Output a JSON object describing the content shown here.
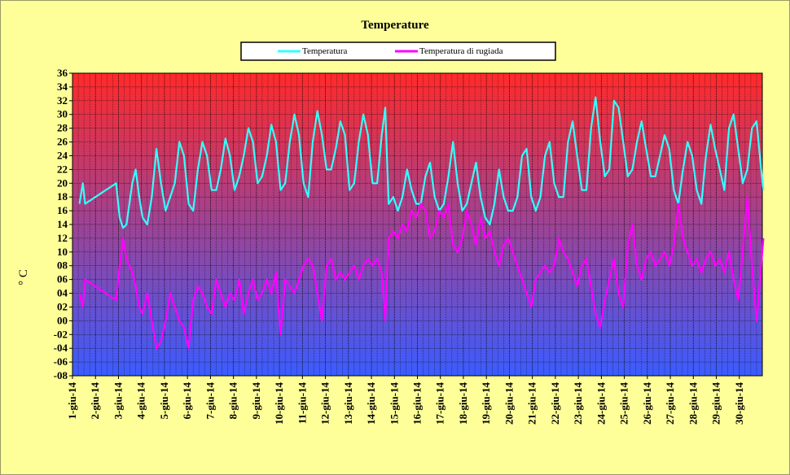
{
  "chart_data": {
    "type": "line",
    "title": "Temperature",
    "ylabel": "° C",
    "xlabel": "",
    "ylim": [
      -8,
      36
    ],
    "yticks": [
      "-08",
      "-06",
      "-04",
      "-02",
      "00",
      "02",
      "04",
      "06",
      "08",
      "10",
      "12",
      "14",
      "16",
      "18",
      "20",
      "22",
      "24",
      "26",
      "28",
      "30",
      "32",
      "34",
      "36"
    ],
    "categories": [
      "1-giu-14",
      "2-giu-14",
      "3-giu-14",
      "4-giu-14",
      "5-giu-14",
      "6-giu-14",
      "7-giu-14",
      "8-giu-14",
      "9-giu-14",
      "10-giu-14",
      "11-giu-14",
      "12-giu-14",
      "13-giu-14",
      "14-giu-14",
      "15-giu-14",
      "16-giu-14",
      "17-giu-14",
      "18-giu-14",
      "19-giu-14",
      "20-giu-14",
      "21-giu-14",
      "22-giu-14",
      "23-giu-14",
      "24-giu-14",
      "25-giu-14",
      "26-giu-14",
      "27-giu-14",
      "28-giu-14",
      "29-giu-14",
      "30-giu-14"
    ],
    "legend_position": "top-center",
    "grid": true,
    "background_gradient": {
      "top": "#ff2a2a",
      "bottom": "#3b5cff"
    },
    "series": [
      {
        "name": "Temperatura",
        "color": "#33ffff",
        "points": [
          [
            1.3,
            17
          ],
          [
            1.45,
            20
          ],
          [
            1.55,
            17
          ],
          [
            2.9,
            20
          ],
          [
            3.05,
            15
          ],
          [
            3.2,
            13.5
          ],
          [
            3.35,
            14
          ],
          [
            3.6,
            20
          ],
          [
            3.75,
            22
          ],
          [
            3.9,
            18
          ],
          [
            4.05,
            15
          ],
          [
            4.25,
            14
          ],
          [
            4.45,
            18
          ],
          [
            4.65,
            25
          ],
          [
            4.85,
            20
          ],
          [
            5.05,
            16
          ],
          [
            5.25,
            18
          ],
          [
            5.45,
            20
          ],
          [
            5.65,
            26
          ],
          [
            5.85,
            24
          ],
          [
            6.05,
            17
          ],
          [
            6.25,
            16
          ],
          [
            6.45,
            22
          ],
          [
            6.65,
            26
          ],
          [
            6.85,
            24
          ],
          [
            7.05,
            19
          ],
          [
            7.25,
            19
          ],
          [
            7.45,
            22
          ],
          [
            7.65,
            26.5
          ],
          [
            7.85,
            24
          ],
          [
            8.05,
            19
          ],
          [
            8.25,
            21
          ],
          [
            8.45,
            24
          ],
          [
            8.65,
            28
          ],
          [
            8.85,
            26
          ],
          [
            9.05,
            20
          ],
          [
            9.25,
            21
          ],
          [
            9.45,
            24
          ],
          [
            9.65,
            28.5
          ],
          [
            9.85,
            26
          ],
          [
            10.05,
            19
          ],
          [
            10.25,
            20
          ],
          [
            10.45,
            26
          ],
          [
            10.65,
            30
          ],
          [
            10.85,
            27
          ],
          [
            11.05,
            20
          ],
          [
            11.25,
            18
          ],
          [
            11.45,
            26
          ],
          [
            11.65,
            30.5
          ],
          [
            11.85,
            27
          ],
          [
            12.05,
            22
          ],
          [
            12.25,
            22
          ],
          [
            12.45,
            25
          ],
          [
            12.65,
            29
          ],
          [
            12.85,
            27
          ],
          [
            13.05,
            19
          ],
          [
            13.25,
            20
          ],
          [
            13.45,
            26
          ],
          [
            13.65,
            30
          ],
          [
            13.85,
            27
          ],
          [
            14.05,
            20
          ],
          [
            14.25,
            20
          ],
          [
            14.45,
            27
          ],
          [
            14.6,
            31
          ],
          [
            14.75,
            17
          ],
          [
            14.95,
            18
          ],
          [
            15.15,
            16
          ],
          [
            15.35,
            18
          ],
          [
            15.55,
            22
          ],
          [
            15.75,
            19
          ],
          [
            15.95,
            17
          ],
          [
            16.15,
            17
          ],
          [
            16.35,
            21
          ],
          [
            16.55,
            23
          ],
          [
            16.75,
            18
          ],
          [
            16.95,
            16
          ],
          [
            17.15,
            17
          ],
          [
            17.35,
            21
          ],
          [
            17.55,
            26
          ],
          [
            17.75,
            20
          ],
          [
            17.95,
            16
          ],
          [
            18.15,
            17
          ],
          [
            18.35,
            20
          ],
          [
            18.55,
            23
          ],
          [
            18.75,
            18
          ],
          [
            18.95,
            15
          ],
          [
            19.15,
            14
          ],
          [
            19.35,
            17
          ],
          [
            19.55,
            22
          ],
          [
            19.75,
            18
          ],
          [
            19.95,
            16
          ],
          [
            20.15,
            16
          ],
          [
            20.35,
            18
          ],
          [
            20.55,
            24
          ],
          [
            20.75,
            25
          ],
          [
            20.95,
            18
          ],
          [
            21.15,
            16
          ],
          [
            21.35,
            18
          ],
          [
            21.55,
            24
          ],
          [
            21.75,
            26
          ],
          [
            21.95,
            20
          ],
          [
            22.15,
            18
          ],
          [
            22.35,
            18
          ],
          [
            22.55,
            26
          ],
          [
            22.75,
            29
          ],
          [
            22.95,
            24
          ],
          [
            23.15,
            19
          ],
          [
            23.35,
            19
          ],
          [
            23.55,
            28
          ],
          [
            23.75,
            32.5
          ],
          [
            23.95,
            26
          ],
          [
            24.15,
            21
          ],
          [
            24.35,
            22
          ],
          [
            24.55,
            32
          ],
          [
            24.75,
            31
          ],
          [
            24.95,
            26
          ],
          [
            25.15,
            21
          ],
          [
            25.35,
            22
          ],
          [
            25.55,
            26
          ],
          [
            25.75,
            29
          ],
          [
            25.95,
            25
          ],
          [
            26.15,
            21
          ],
          [
            26.35,
            21
          ],
          [
            26.55,
            24
          ],
          [
            26.75,
            27
          ],
          [
            26.95,
            25
          ],
          [
            27.15,
            19
          ],
          [
            27.35,
            17
          ],
          [
            27.55,
            22
          ],
          [
            27.75,
            26
          ],
          [
            27.95,
            24
          ],
          [
            28.15,
            19
          ],
          [
            28.35,
            17
          ],
          [
            28.55,
            24
          ],
          [
            28.75,
            28.5
          ],
          [
            28.95,
            25
          ],
          [
            29.15,
            22
          ],
          [
            29.35,
            19
          ],
          [
            29.55,
            28
          ],
          [
            29.75,
            30
          ],
          [
            29.95,
            25
          ],
          [
            30.15,
            20
          ],
          [
            30.35,
            22
          ],
          [
            30.55,
            28
          ],
          [
            30.75,
            29
          ],
          [
            30.95,
            22
          ],
          [
            31.05,
            19
          ]
        ]
      },
      {
        "name": "Temperatura di rugiada",
        "color": "#ff00ff",
        "points": [
          [
            1.3,
            4
          ],
          [
            1.45,
            2
          ],
          [
            1.55,
            6
          ],
          [
            2.9,
            3
          ],
          [
            3.05,
            8
          ],
          [
            3.2,
            12
          ],
          [
            3.35,
            9
          ],
          [
            3.6,
            7
          ],
          [
            3.75,
            5
          ],
          [
            3.9,
            2
          ],
          [
            4.05,
            1
          ],
          [
            4.25,
            4
          ],
          [
            4.45,
            0
          ],
          [
            4.65,
            -4
          ],
          [
            4.85,
            -3
          ],
          [
            5.05,
            0
          ],
          [
            5.25,
            4
          ],
          [
            5.45,
            2
          ],
          [
            5.65,
            0
          ],
          [
            5.85,
            -1
          ],
          [
            6.05,
            -4
          ],
          [
            6.25,
            3
          ],
          [
            6.45,
            5
          ],
          [
            6.65,
            4
          ],
          [
            6.85,
            2
          ],
          [
            7.05,
            1
          ],
          [
            7.25,
            6
          ],
          [
            7.45,
            4
          ],
          [
            7.65,
            2
          ],
          [
            7.85,
            4
          ],
          [
            8.05,
            3
          ],
          [
            8.25,
            6
          ],
          [
            8.45,
            1
          ],
          [
            8.65,
            4
          ],
          [
            8.85,
            6
          ],
          [
            9.05,
            3
          ],
          [
            9.25,
            4
          ],
          [
            9.45,
            6
          ],
          [
            9.65,
            4
          ],
          [
            9.85,
            7
          ],
          [
            10.05,
            -2
          ],
          [
            10.25,
            6
          ],
          [
            10.45,
            5
          ],
          [
            10.65,
            4
          ],
          [
            10.85,
            6
          ],
          [
            11.05,
            8
          ],
          [
            11.25,
            9
          ],
          [
            11.45,
            8
          ],
          [
            11.65,
            4
          ],
          [
            11.85,
            0
          ],
          [
            12.05,
            8
          ],
          [
            12.25,
            9
          ],
          [
            12.45,
            6
          ],
          [
            12.65,
            7
          ],
          [
            12.85,
            6
          ],
          [
            13.05,
            7
          ],
          [
            13.25,
            8
          ],
          [
            13.45,
            6
          ],
          [
            13.65,
            8
          ],
          [
            13.85,
            9
          ],
          [
            14.05,
            8
          ],
          [
            14.25,
            9
          ],
          [
            14.45,
            7
          ],
          [
            14.6,
            0
          ],
          [
            14.75,
            12
          ],
          [
            14.95,
            13
          ],
          [
            15.15,
            12
          ],
          [
            15.35,
            14
          ],
          [
            15.55,
            13
          ],
          [
            15.75,
            16
          ],
          [
            15.95,
            15
          ],
          [
            16.15,
            17
          ],
          [
            16.35,
            16
          ],
          [
            16.55,
            12
          ],
          [
            16.75,
            13
          ],
          [
            16.95,
            16
          ],
          [
            17.15,
            15
          ],
          [
            17.35,
            17
          ],
          [
            17.55,
            11
          ],
          [
            17.75,
            10
          ],
          [
            17.95,
            12
          ],
          [
            18.15,
            16
          ],
          [
            18.35,
            14
          ],
          [
            18.55,
            11
          ],
          [
            18.75,
            15
          ],
          [
            18.95,
            12
          ],
          [
            19.15,
            13
          ],
          [
            19.35,
            10
          ],
          [
            19.55,
            8
          ],
          [
            19.75,
            11
          ],
          [
            19.95,
            12
          ],
          [
            20.15,
            10
          ],
          [
            20.35,
            8
          ],
          [
            20.55,
            6
          ],
          [
            20.75,
            4
          ],
          [
            20.95,
            2
          ],
          [
            21.15,
            6
          ],
          [
            21.35,
            7
          ],
          [
            21.55,
            8
          ],
          [
            21.75,
            7
          ],
          [
            21.95,
            8
          ],
          [
            22.15,
            12
          ],
          [
            22.35,
            10
          ],
          [
            22.55,
            9
          ],
          [
            22.75,
            7
          ],
          [
            22.95,
            5
          ],
          [
            23.15,
            8
          ],
          [
            23.35,
            9
          ],
          [
            23.55,
            5
          ],
          [
            23.75,
            1
          ],
          [
            23.95,
            -1
          ],
          [
            24.15,
            3
          ],
          [
            24.35,
            6
          ],
          [
            24.55,
            9
          ],
          [
            24.75,
            4
          ],
          [
            24.95,
            2
          ],
          [
            25.15,
            11
          ],
          [
            25.35,
            14
          ],
          [
            25.55,
            8
          ],
          [
            25.75,
            6
          ],
          [
            25.95,
            9
          ],
          [
            26.15,
            10
          ],
          [
            26.35,
            8
          ],
          [
            26.55,
            9
          ],
          [
            26.75,
            10
          ],
          [
            26.95,
            8
          ],
          [
            27.15,
            11
          ],
          [
            27.35,
            17
          ],
          [
            27.55,
            12
          ],
          [
            27.75,
            10
          ],
          [
            27.95,
            8
          ],
          [
            28.15,
            9
          ],
          [
            28.35,
            7
          ],
          [
            28.55,
            9
          ],
          [
            28.75,
            10
          ],
          [
            28.95,
            8
          ],
          [
            29.15,
            9
          ],
          [
            29.35,
            7
          ],
          [
            29.55,
            10
          ],
          [
            29.75,
            6
          ],
          [
            29.95,
            3
          ],
          [
            30.15,
            10
          ],
          [
            30.35,
            18
          ],
          [
            30.55,
            8
          ],
          [
            30.75,
            0
          ],
          [
            30.95,
            8
          ],
          [
            31.05,
            12
          ]
        ]
      }
    ]
  }
}
